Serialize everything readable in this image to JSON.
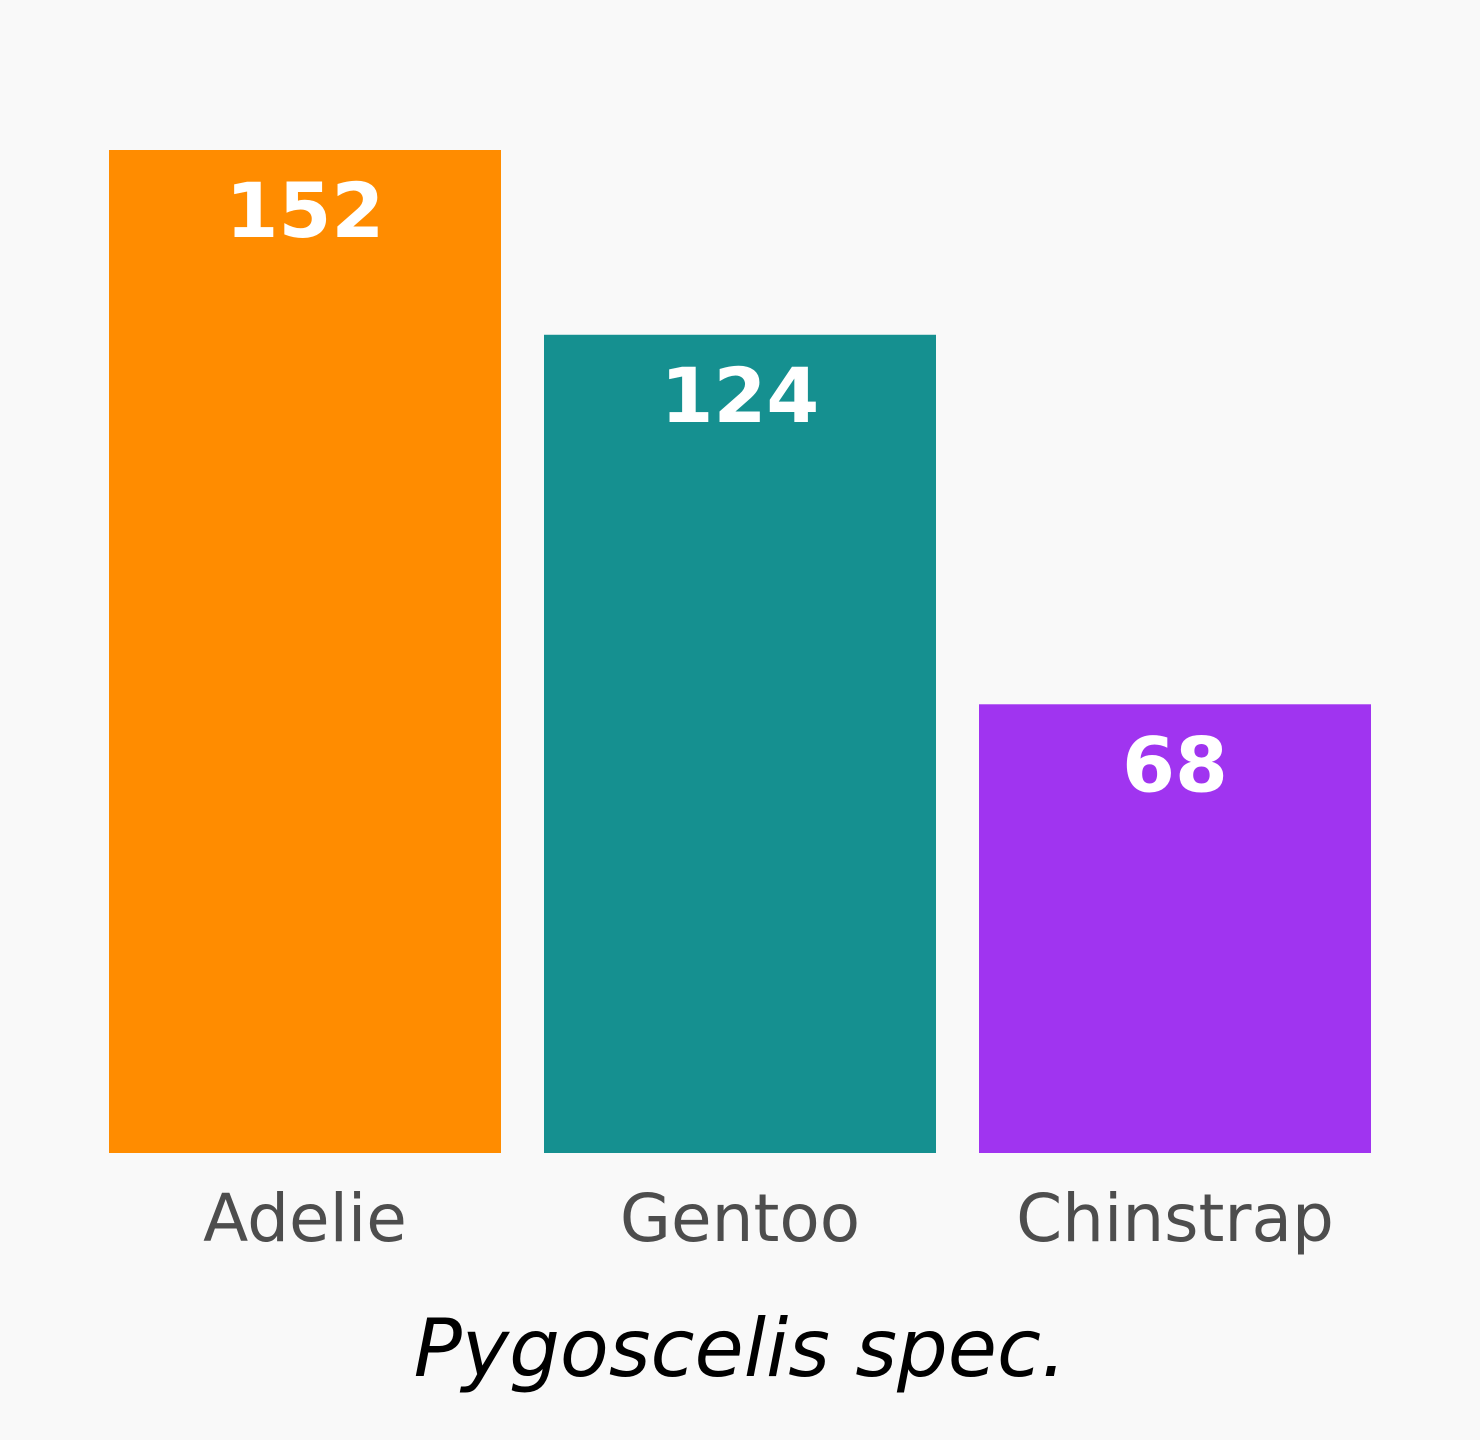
{
  "chart_data": {
    "type": "bar",
    "categories": [
      "Adelie",
      "Gentoo",
      "Chinstrap"
    ],
    "values": [
      152,
      124,
      68
    ],
    "value_labels": [
      "152",
      "124",
      "68"
    ],
    "colors": [
      "#ff8c00",
      "#159090",
      "#a034f0"
    ],
    "xlabel": "Pygoscelis spec.",
    "ylabel": "",
    "ylim": [
      0,
      152
    ],
    "grid": false,
    "legend": "none"
  }
}
